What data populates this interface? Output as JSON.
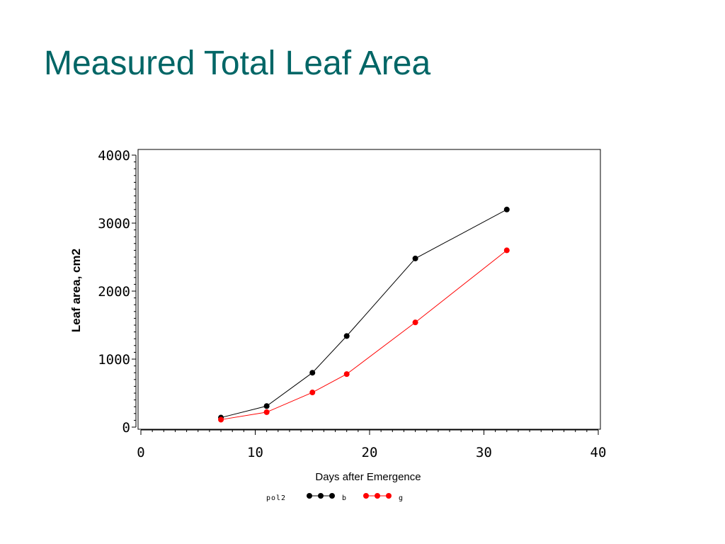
{
  "slide": {
    "title": "Measured Total Leaf Area"
  },
  "colors": {
    "title": "#006666",
    "series_b": "#000000",
    "series_g": "#ff0000"
  },
  "chart_data": {
    "type": "line",
    "title": "",
    "xlabel": "Days after Emergence",
    "ylabel": "Leaf area, cm2",
    "xlim": [
      0,
      40
    ],
    "ylim": [
      0,
      4000
    ],
    "x_ticks": [
      "0",
      "10",
      "20",
      "30",
      "40"
    ],
    "y_ticks": [
      "0",
      "1000",
      "2000",
      "3000",
      "4000"
    ],
    "grid": false,
    "legend": {
      "position": "bottom",
      "title": "pol2"
    },
    "series": [
      {
        "name": "b",
        "color": "#000000",
        "x": [
          7,
          11,
          15,
          18,
          24,
          32
        ],
        "y": [
          140,
          310,
          800,
          1340,
          2480,
          3200
        ]
      },
      {
        "name": "g",
        "color": "#ff0000",
        "x": [
          7,
          11,
          15,
          18,
          24,
          32
        ],
        "y": [
          110,
          220,
          510,
          780,
          1540,
          2600
        ]
      }
    ]
  }
}
